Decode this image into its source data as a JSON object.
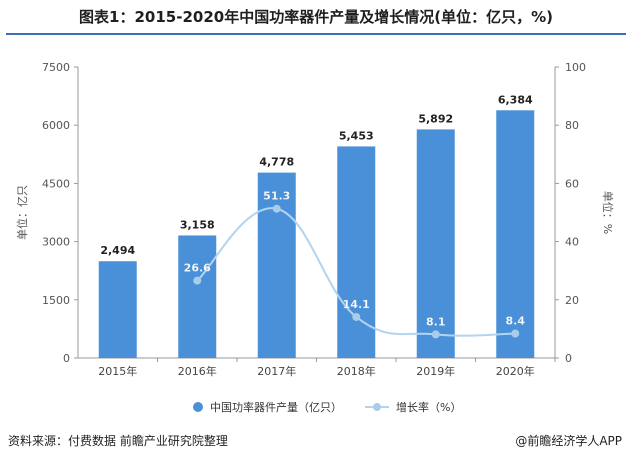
{
  "title": "图表1：2015-2020年中国功率器件产量及增长情况(单位：亿只，%)",
  "footer": {
    "source": "资料来源：付费数据 前瞻产业研究院整理",
    "brand": "@前瞻经济学人APP"
  },
  "colors": {
    "bar": "#4a90d9",
    "line": "#b3d4ee",
    "line_marker": "#a9cce9",
    "axis": "#999999",
    "title_rule": "#3b6fb6"
  },
  "chart_data": {
    "type": "bar",
    "categories": [
      "2015年",
      "2016年",
      "2017年",
      "2018年",
      "2019年",
      "2020年"
    ],
    "series": [
      {
        "name": "中国功率器件产量（亿只）",
        "type": "bar",
        "axis": "left",
        "values": [
          2494,
          3158,
          4778,
          5453,
          5892,
          6384
        ],
        "labels": [
          "2,494",
          "3,158",
          "4,778",
          "5,453",
          "5,892",
          "6,384"
        ]
      },
      {
        "name": "增长率（%）",
        "type": "line",
        "axis": "right",
        "values": [
          null,
          26.6,
          51.3,
          14.1,
          8.1,
          8.4
        ],
        "labels": [
          "",
          "26.6",
          "51.3",
          "14.1",
          "8.1",
          "8.4"
        ]
      }
    ],
    "ylabel": "单位：亿只",
    "y2label": "单位：%",
    "ylim": [
      0,
      7500
    ],
    "y2lim": [
      0,
      100
    ],
    "yticks": [
      "0",
      "1500",
      "3000",
      "4500",
      "6000",
      "7500"
    ],
    "y2ticks": [
      "0",
      "20",
      "40",
      "60",
      "80",
      "100"
    ],
    "legend_position": "bottom"
  }
}
